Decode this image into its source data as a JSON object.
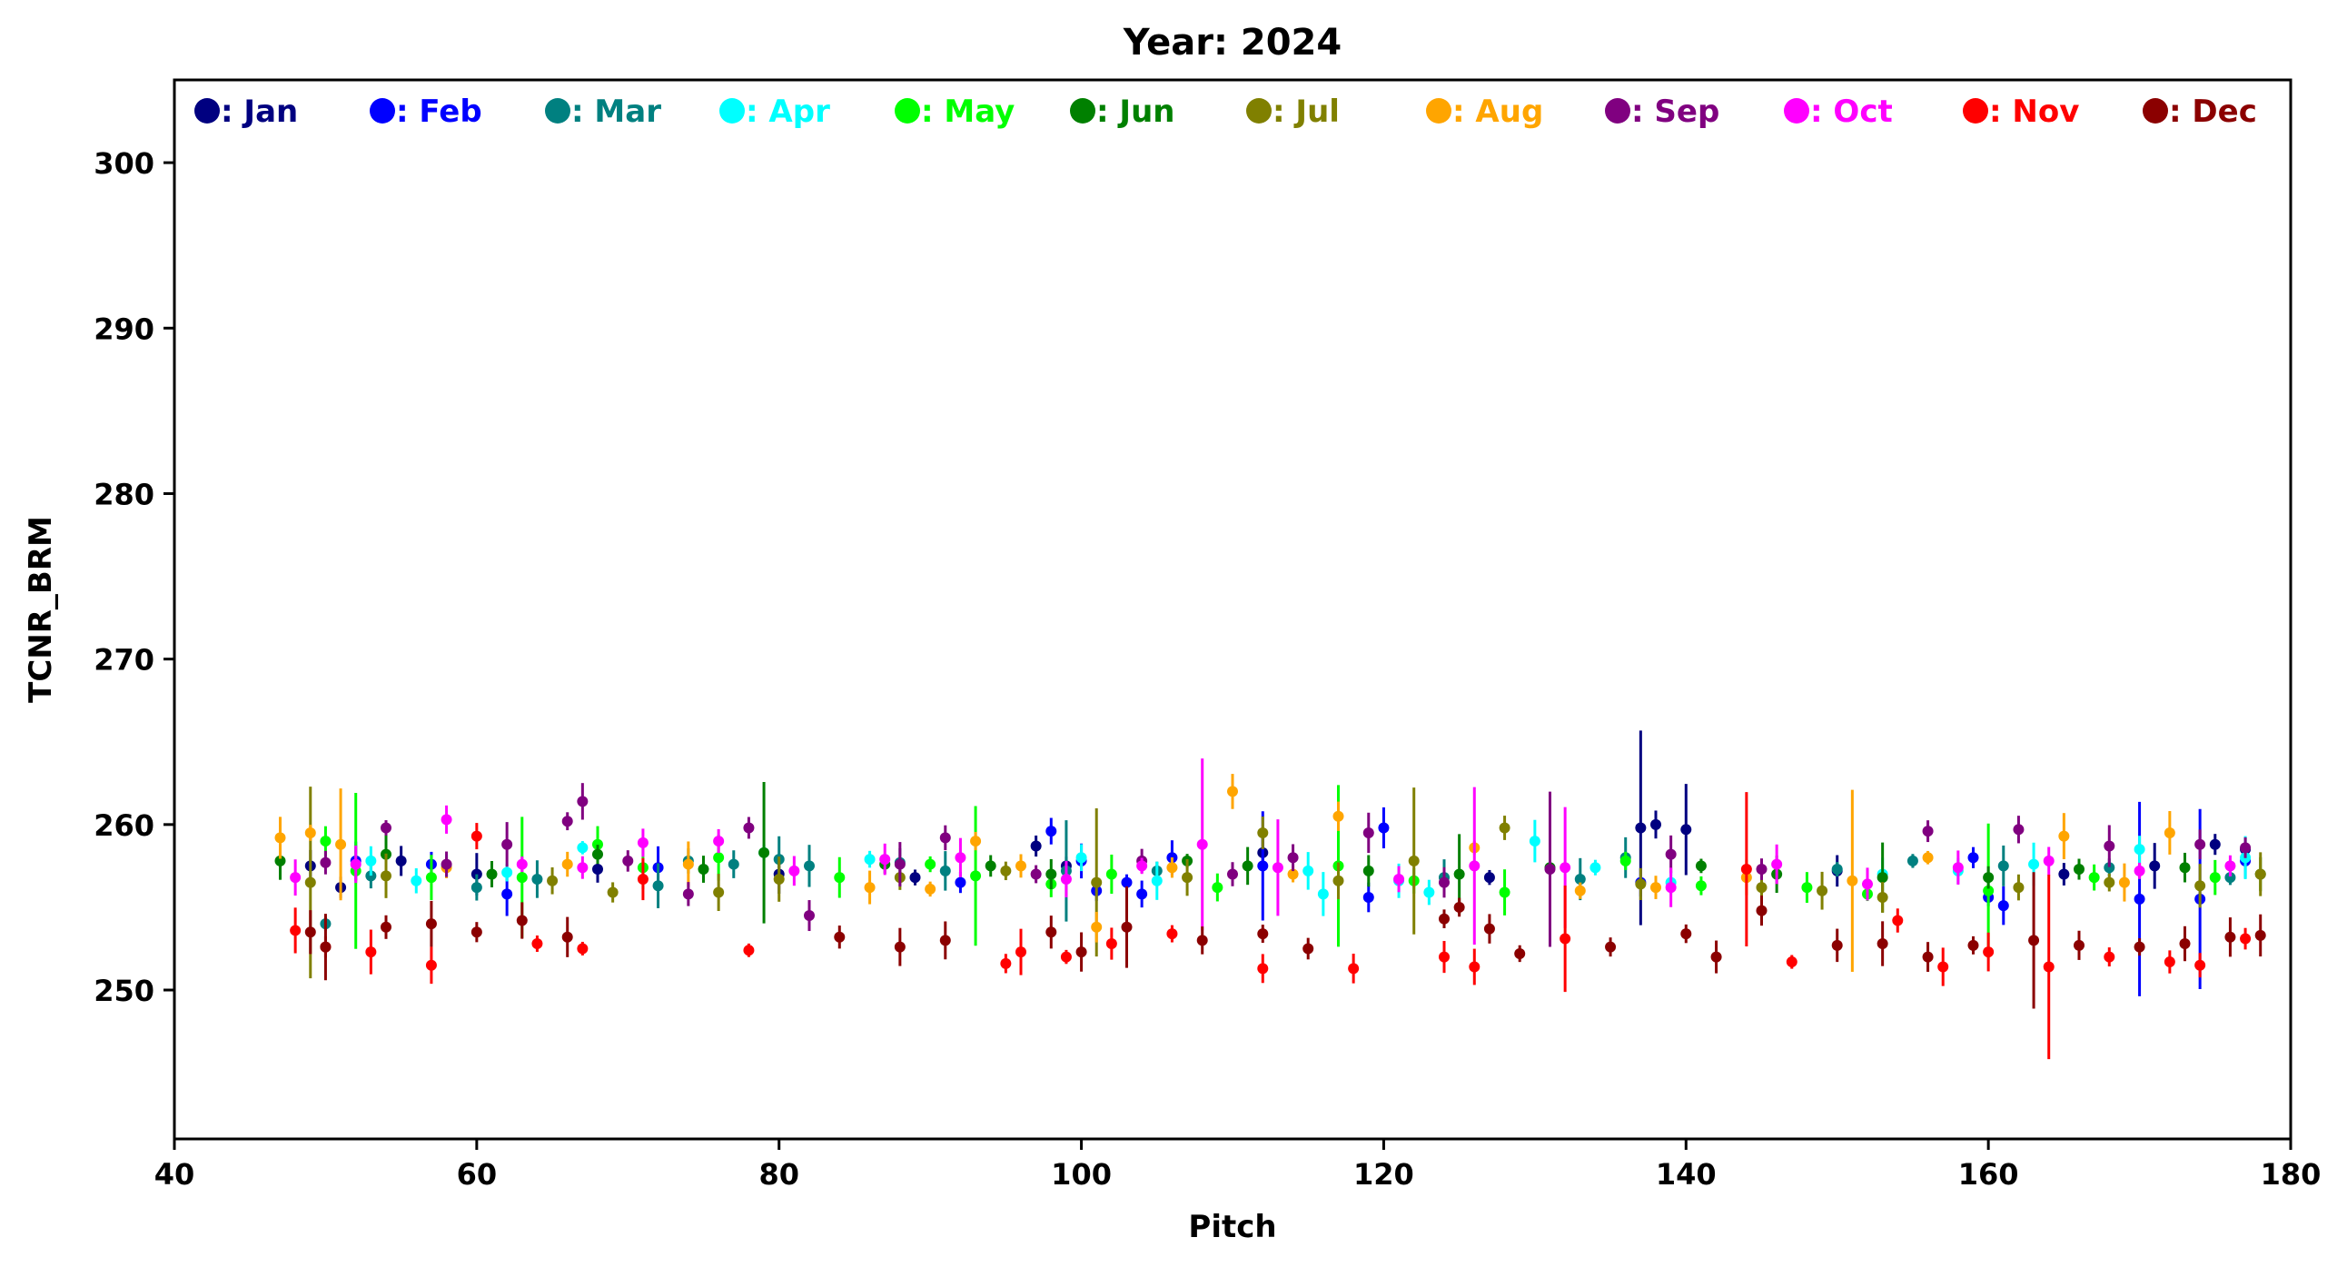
{
  "chart_data": {
    "type": "scatter",
    "title": "Year: 2024",
    "xlabel": "Pitch",
    "ylabel": "TCNR_BRM",
    "xlim": [
      40,
      180
    ],
    "ylim": [
      241,
      305
    ],
    "xticks": [
      40,
      60,
      80,
      100,
      120,
      140,
      160,
      180
    ],
    "yticks": [
      250,
      260,
      270,
      280,
      290,
      300
    ],
    "legend_position": "top",
    "error_bars": true,
    "grid": false,
    "series": [
      {
        "name": ": Jan",
        "color": "#000080",
        "points": [
          [
            49,
            257.5
          ],
          [
            51,
            256.2
          ],
          [
            55,
            257.8
          ],
          [
            60,
            257.0
          ],
          [
            68,
            257.3
          ],
          [
            80,
            257.0
          ],
          [
            89,
            256.8
          ],
          [
            97,
            258.7
          ],
          [
            99,
            257.5
          ],
          [
            112,
            258.3
          ],
          [
            127,
            256.8
          ],
          [
            137,
            259.8
          ],
          [
            138,
            260.0
          ],
          [
            140,
            259.7
          ],
          [
            150,
            257.2
          ],
          [
            165,
            257.0
          ],
          [
            171,
            257.5
          ],
          [
            175,
            258.8
          ],
          [
            177,
            258.5
          ]
        ]
      },
      {
        "name": ": Feb",
        "color": "#0000ff",
        "points": [
          [
            52,
            257.8
          ],
          [
            57,
            257.6
          ],
          [
            62,
            255.8
          ],
          [
            72,
            257.4
          ],
          [
            92,
            256.5
          ],
          [
            98,
            259.6
          ],
          [
            100,
            257.8
          ],
          [
            101,
            256.0
          ],
          [
            103,
            256.5
          ],
          [
            104,
            255.8
          ],
          [
            106,
            258.0
          ],
          [
            112,
            257.5
          ],
          [
            119,
            255.6
          ],
          [
            120,
            259.8
          ],
          [
            137,
            256.5
          ],
          [
            159,
            258.0
          ],
          [
            160,
            255.6
          ],
          [
            161,
            255.1
          ],
          [
            170,
            255.5
          ],
          [
            174,
            255.5
          ],
          [
            177,
            257.8
          ]
        ]
      },
      {
        "name": ": Mar",
        "color": "#008080",
        "points": [
          [
            50,
            254.0
          ],
          [
            53,
            256.9
          ],
          [
            60,
            256.2
          ],
          [
            64,
            256.7
          ],
          [
            72,
            256.3
          ],
          [
            74,
            257.8
          ],
          [
            77,
            257.6
          ],
          [
            80,
            257.9
          ],
          [
            82,
            257.5
          ],
          [
            88,
            257.7
          ],
          [
            91,
            257.2
          ],
          [
            99,
            257.2
          ],
          [
            105,
            257.2
          ],
          [
            124,
            256.8
          ],
          [
            133,
            256.7
          ],
          [
            136,
            258.0
          ],
          [
            150,
            257.3
          ],
          [
            155,
            257.8
          ],
          [
            161,
            257.5
          ],
          [
            168,
            257.4
          ],
          [
            176,
            256.8
          ]
        ]
      },
      {
        "name": ": Apr",
        "color": "#00ffff",
        "points": [
          [
            53,
            257.8
          ],
          [
            56,
            256.6
          ],
          [
            58,
            257.5
          ],
          [
            62,
            257.1
          ],
          [
            67,
            258.6
          ],
          [
            79,
            258.3
          ],
          [
            86,
            257.9
          ],
          [
            100,
            258.0
          ],
          [
            105,
            256.6
          ],
          [
            115,
            257.2
          ],
          [
            116,
            255.8
          ],
          [
            121,
            256.6
          ],
          [
            123,
            255.9
          ],
          [
            130,
            259.0
          ],
          [
            134,
            257.4
          ],
          [
            139,
            256.5
          ],
          [
            153,
            257.0
          ],
          [
            158,
            257.2
          ],
          [
            163,
            257.6
          ],
          [
            170,
            258.5
          ],
          [
            177,
            258.0
          ]
        ]
      },
      {
        "name": ": May",
        "color": "#00ff00",
        "points": [
          [
            50,
            259.0
          ],
          [
            52,
            257.2
          ],
          [
            57,
            256.8
          ],
          [
            63,
            256.8
          ],
          [
            68,
            258.8
          ],
          [
            71,
            257.4
          ],
          [
            76,
            258.0
          ],
          [
            84,
            256.8
          ],
          [
            90,
            257.6
          ],
          [
            93,
            256.9
          ],
          [
            98,
            256.4
          ],
          [
            102,
            257.0
          ],
          [
            109,
            256.2
          ],
          [
            117,
            257.5
          ],
          [
            122,
            256.6
          ],
          [
            128,
            255.9
          ],
          [
            136,
            257.8
          ],
          [
            141,
            256.3
          ],
          [
            148,
            256.2
          ],
          [
            152,
            255.8
          ],
          [
            160,
            256.0
          ],
          [
            167,
            256.8
          ],
          [
            175,
            256.8
          ]
        ]
      },
      {
        "name": ": Jun",
        "color": "#008000",
        "points": [
          [
            47,
            257.8
          ],
          [
            54,
            258.2
          ],
          [
            61,
            257.0
          ],
          [
            68,
            258.2
          ],
          [
            75,
            257.3
          ],
          [
            79,
            258.3
          ],
          [
            87,
            257.6
          ],
          [
            94,
            257.5
          ],
          [
            98,
            257.0
          ],
          [
            107,
            257.8
          ],
          [
            111,
            257.5
          ],
          [
            119,
            257.2
          ],
          [
            125,
            257.0
          ],
          [
            131,
            257.4
          ],
          [
            141,
            257.5
          ],
          [
            146,
            257.0
          ],
          [
            153,
            256.8
          ],
          [
            160,
            256.8
          ],
          [
            166,
            257.3
          ],
          [
            173,
            257.4
          ],
          [
            178,
            257.0
          ]
        ]
      },
      {
        "name": ": Jul",
        "color": "#808000",
        "points": [
          [
            49,
            256.5
          ],
          [
            54,
            256.9
          ],
          [
            65,
            256.6
          ],
          [
            69,
            255.9
          ],
          [
            76,
            255.9
          ],
          [
            80,
            256.7
          ],
          [
            88,
            256.8
          ],
          [
            95,
            257.2
          ],
          [
            101,
            256.5
          ],
          [
            107,
            256.8
          ],
          [
            112,
            259.5
          ],
          [
            117,
            256.6
          ],
          [
            122,
            257.8
          ],
          [
            128,
            259.8
          ],
          [
            137,
            256.4
          ],
          [
            145,
            256.2
          ],
          [
            149,
            256.0
          ],
          [
            153,
            255.6
          ],
          [
            162,
            256.2
          ],
          [
            168,
            256.5
          ],
          [
            174,
            256.3
          ],
          [
            178,
            257.0
          ]
        ]
      },
      {
        "name": ": Aug",
        "color": "#ffa500",
        "points": [
          [
            47,
            259.2
          ],
          [
            49,
            259.5
          ],
          [
            51,
            258.8
          ],
          [
            58,
            257.4
          ],
          [
            66,
            257.6
          ],
          [
            74,
            257.6
          ],
          [
            86,
            256.2
          ],
          [
            90,
            256.1
          ],
          [
            93,
            259.0
          ],
          [
            96,
            257.5
          ],
          [
            101,
            253.8
          ],
          [
            106,
            257.4
          ],
          [
            110,
            262.0
          ],
          [
            114,
            257.0
          ],
          [
            117,
            260.5
          ],
          [
            126,
            258.6
          ],
          [
            133,
            256.0
          ],
          [
            138,
            256.2
          ],
          [
            144,
            256.8
          ],
          [
            151,
            256.6
          ],
          [
            156,
            258.0
          ],
          [
            165,
            259.3
          ],
          [
            169,
            256.5
          ],
          [
            172,
            259.5
          ]
        ]
      },
      {
        "name": ": Sep",
        "color": "#800080",
        "points": [
          [
            50,
            257.7
          ],
          [
            54,
            259.8
          ],
          [
            58,
            257.6
          ],
          [
            62,
            258.8
          ],
          [
            66,
            260.2
          ],
          [
            67,
            261.4
          ],
          [
            70,
            257.8
          ],
          [
            74,
            255.8
          ],
          [
            78,
            259.8
          ],
          [
            82,
            254.5
          ],
          [
            88,
            257.6
          ],
          [
            91,
            259.2
          ],
          [
            97,
            257.0
          ],
          [
            104,
            257.8
          ],
          [
            110,
            257.0
          ],
          [
            114,
            258.0
          ],
          [
            119,
            259.5
          ],
          [
            124,
            256.5
          ],
          [
            131,
            257.3
          ],
          [
            139,
            258.2
          ],
          [
            145,
            257.3
          ],
          [
            156,
            259.6
          ],
          [
            162,
            259.7
          ],
          [
            168,
            258.7
          ],
          [
            174,
            258.8
          ],
          [
            177,
            258.6
          ]
        ]
      },
      {
        "name": ": Oct",
        "color": "#ff00ff",
        "points": [
          [
            48,
            256.8
          ],
          [
            52,
            257.6
          ],
          [
            58,
            260.3
          ],
          [
            63,
            257.6
          ],
          [
            67,
            257.4
          ],
          [
            71,
            258.9
          ],
          [
            76,
            259.0
          ],
          [
            81,
            257.2
          ],
          [
            87,
            257.9
          ],
          [
            92,
            258.0
          ],
          [
            99,
            256.7
          ],
          [
            104,
            257.5
          ],
          [
            108,
            258.8
          ],
          [
            113,
            257.4
          ],
          [
            121,
            256.7
          ],
          [
            126,
            257.5
          ],
          [
            132,
            257.4
          ],
          [
            139,
            256.2
          ],
          [
            146,
            257.6
          ],
          [
            152,
            256.4
          ],
          [
            158,
            257.4
          ],
          [
            164,
            257.8
          ],
          [
            170,
            257.2
          ],
          [
            176,
            257.5
          ]
        ]
      },
      {
        "name": ": Nov",
        "color": "#ff0000",
        "points": [
          [
            48,
            253.6
          ],
          [
            50,
            252.6
          ],
          [
            53,
            252.3
          ],
          [
            57,
            251.5
          ],
          [
            60,
            259.3
          ],
          [
            64,
            252.8
          ],
          [
            67,
            252.5
          ],
          [
            71,
            256.7
          ],
          [
            78,
            252.4
          ],
          [
            95,
            251.6
          ],
          [
            96,
            252.3
          ],
          [
            99,
            252.0
          ],
          [
            102,
            252.8
          ],
          [
            106,
            253.4
          ],
          [
            112,
            251.3
          ],
          [
            118,
            251.3
          ],
          [
            124,
            252.0
          ],
          [
            126,
            251.4
          ],
          [
            132,
            253.1
          ],
          [
            144,
            257.3
          ],
          [
            147,
            251.7
          ],
          [
            154,
            254.2
          ],
          [
            157,
            251.4
          ],
          [
            160,
            252.3
          ],
          [
            164,
            251.4
          ],
          [
            168,
            252.0
          ],
          [
            172,
            251.7
          ],
          [
            174,
            251.5
          ],
          [
            177,
            253.1
          ]
        ]
      },
      {
        "name": ": Dec",
        "color": "#8b0000",
        "points": [
          [
            49,
            253.5
          ],
          [
            50,
            252.6
          ],
          [
            54,
            253.8
          ],
          [
            57,
            254.0
          ],
          [
            60,
            253.5
          ],
          [
            63,
            254.2
          ],
          [
            66,
            253.2
          ],
          [
            84,
            253.2
          ],
          [
            88,
            252.6
          ],
          [
            91,
            253.0
          ],
          [
            98,
            253.5
          ],
          [
            100,
            252.3
          ],
          [
            103,
            253.8
          ],
          [
            108,
            253.0
          ],
          [
            112,
            253.4
          ],
          [
            115,
            252.5
          ],
          [
            124,
            254.3
          ],
          [
            125,
            255.0
          ],
          [
            127,
            253.7
          ],
          [
            129,
            252.2
          ],
          [
            135,
            252.6
          ],
          [
            140,
            253.4
          ],
          [
            142,
            252.0
          ],
          [
            145,
            254.8
          ],
          [
            150,
            252.7
          ],
          [
            153,
            252.8
          ],
          [
            156,
            252.0
          ],
          [
            159,
            252.7
          ],
          [
            163,
            253.0
          ],
          [
            166,
            252.7
          ],
          [
            170,
            252.6
          ],
          [
            173,
            252.8
          ],
          [
            176,
            253.2
          ],
          [
            178,
            253.3
          ]
        ]
      }
    ]
  }
}
